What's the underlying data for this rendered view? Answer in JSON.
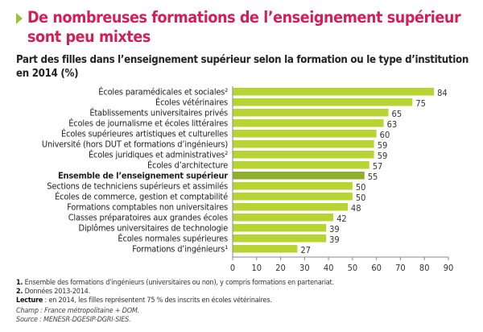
{
  "title": "De nombreuses formations de l’enseignement supérieur sont peu mixtes",
  "title_line1": "De nombreuses formations de l’enseignement supérieur",
  "title_line2": "sont peu mixtes",
  "chart_data": {
    "type": "bar",
    "orientation": "horizontal",
    "title": "Part des filles dans l’enseignement supérieur selon la formation ou le type d’institution en 2014 (%)",
    "categories": [
      "Écoles paramédicales et sociales²",
      "Écoles vétérinaires",
      "Établissements universitaires privés",
      "Écoles de journalisme et écoles littéraires",
      "Écoles supérieures artistiques et culturelles",
      "Université (hors DUT et formations d’ingénieurs)",
      "Écoles juridiques et administratives²",
      "Écoles d’architecture",
      "Ensemble de l’enseignement supérieur",
      "Sections de techniciens supérieurs et assimilés",
      "Écoles de commerce, gestion et comptabilité",
      "Formations comptables non universitaires",
      "Classes préparatoires aux grandes écoles",
      "Diplômes universitaires de technologie",
      "Écoles normales supérieures",
      "Formations d’ingénieurs¹"
    ],
    "values": [
      84,
      75,
      65,
      63,
      60,
      59,
      59,
      57,
      55,
      50,
      50,
      48,
      42,
      39,
      39,
      27
    ],
    "highlight_index": 8,
    "xlim": [
      0,
      90
    ],
    "xticks": [
      0,
      10,
      20,
      30,
      40,
      50,
      60,
      70,
      80,
      90
    ],
    "colors": {
      "bar": "#b8d432",
      "highlight": "#8fb02c",
      "title": "#d41f56"
    }
  },
  "notes": {
    "n1_num": "1.",
    "n1": " Ensemble des formations d’ingénieurs (universitaires ou non), y compris formations en partenariat.",
    "n2_num": "2.",
    "n2": " Données 2013-2014.",
    "lecture_label": "Lecture",
    "lecture": " : en 2014, les filles représentent 75 % des inscrits en écoles vétérinaires.",
    "champ": "Champ : France métropolitaine + DOM.",
    "source": "Source : MENESR-DGESIP-DGRI-SIES."
  }
}
